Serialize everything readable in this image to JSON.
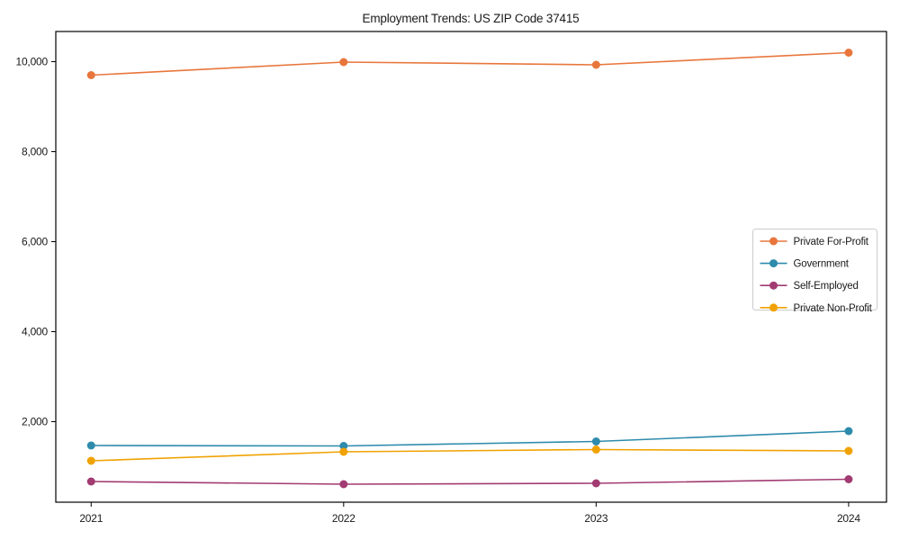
{
  "chart_data": {
    "type": "line",
    "title": "Employment Trends: US ZIP Code 37415",
    "x": [
      2021,
      2022,
      2023,
      2024
    ],
    "categories": [
      "2021",
      "2022",
      "2023",
      "2024"
    ],
    "series": [
      {
        "name": "Private For-Profit",
        "color": "#e8763c",
        "values": [
          9700,
          9990,
          9930,
          10200
        ]
      },
      {
        "name": "Government",
        "color": "#2e8bab",
        "values": [
          1470,
          1460,
          1560,
          1790
        ]
      },
      {
        "name": "Self-Employed",
        "color": "#a23b72",
        "values": [
          670,
          610,
          630,
          720
        ]
      },
      {
        "name": "Private Non-Profit",
        "color": "#f0a202",
        "values": [
          1130,
          1330,
          1380,
          1350
        ]
      }
    ],
    "y_ticks": {
      "values": [
        2000,
        4000,
        6000,
        8000,
        10000
      ],
      "labels": [
        "2,000",
        "4,000",
        "6,000",
        "8,000",
        "10,000"
      ]
    },
    "xlim": [
      2020.86,
      2024.15
    ],
    "ylim": [
      210,
      10670
    ],
    "grid": false,
    "background": "#ffffff",
    "axis_color": "#000000",
    "legend": {
      "position": "center-right",
      "entries": [
        "Private For-Profit",
        "Government",
        "Self-Employed",
        "Private Non-Profit"
      ]
    }
  }
}
